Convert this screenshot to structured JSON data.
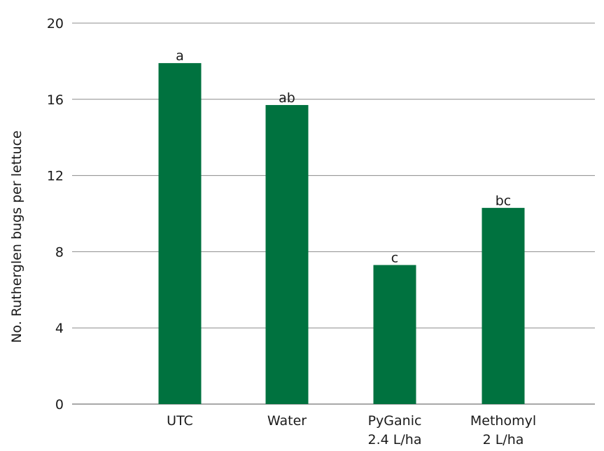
{
  "chart_data": {
    "type": "bar",
    "title": "",
    "xlabel": "",
    "ylabel": "No. Rutherglen bugs per lettuce",
    "ylim": [
      0,
      20
    ],
    "yticks": [
      0,
      4,
      8,
      12,
      16,
      20
    ],
    "grid": true,
    "categories": [
      [
        "UTC"
      ],
      [
        "Water"
      ],
      [
        "PyGanic",
        "2.4 L/ha"
      ],
      [
        "Methomyl",
        "2 L/ha"
      ]
    ],
    "values": [
      17.9,
      15.7,
      7.3,
      10.3
    ],
    "data_labels": [
      "a",
      "ab",
      "c",
      "bc"
    ],
    "bar_color": "#00723f",
    "grid_color": "#8c8c8c"
  }
}
